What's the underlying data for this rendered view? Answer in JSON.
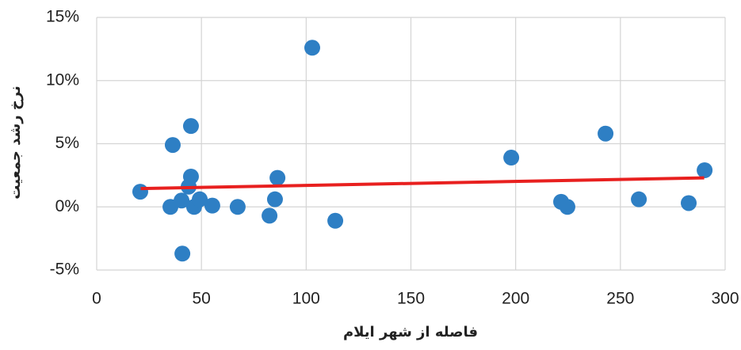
{
  "chart_data": {
    "type": "scatter",
    "x_label": "فاصله از شهر ایلام",
    "y_label": "نرخ رشد جمعیت",
    "series": [
      {
        "color": "#2e7fc4",
        "x": [
          20.8,
          35.2,
          36.3,
          40.5,
          40.9,
          43.9,
          45,
          45,
          46.5,
          49.2,
          55.2,
          67.3,
          82.5,
          85.1,
          86.3,
          102.9,
          113.9,
          197.9,
          221.7,
          224.7,
          242.9,
          258.8,
          282.6,
          290.2
        ],
        "values": [
          1.2,
          0,
          4.9,
          0.5,
          -3.7,
          1.6,
          6.4,
          2.4,
          0,
          0.6,
          0.1,
          0,
          -0.7,
          0.6,
          2.3,
          12.6,
          -1.1,
          3.9,
          0.4,
          0,
          5.8,
          0.6,
          0.3,
          2.9
        ]
      }
    ],
    "trendline": {
      "color": "#e8201f",
      "x": [
        21,
        290
      ],
      "values": [
        1.45,
        2.3
      ]
    },
    "xlim": [
      0,
      300
    ],
    "xticks": [
      0,
      50,
      100,
      150,
      200,
      250,
      300
    ],
    "ylim": [
      -5,
      15
    ],
    "yticks": [
      {
        "value": -5,
        "label": "-5%"
      },
      {
        "value": 0,
        "label": "0%"
      },
      {
        "value": 5,
        "label": "5%"
      },
      {
        "value": 10,
        "label": "10%"
      },
      {
        "value": 15,
        "label": "15%"
      }
    ],
    "grid": true
  }
}
